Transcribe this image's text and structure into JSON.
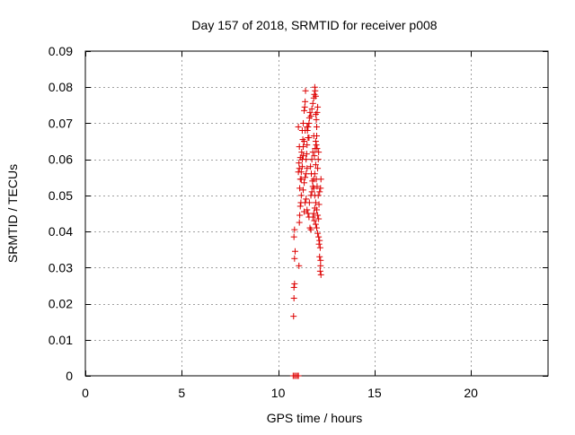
{
  "chart_data": {
    "type": "scatter",
    "title": "Day 157 of 2018, SRMTID for receiver p008",
    "xlabel": "GPS time / hours",
    "ylabel": "SRMTID / TECUs",
    "xlim": [
      0,
      24
    ],
    "ylim": [
      0,
      0.09
    ],
    "grid": true,
    "x_ticks": [
      {
        "value": 0,
        "label": "0"
      },
      {
        "value": 5,
        "label": "5"
      },
      {
        "value": 10,
        "label": "10"
      },
      {
        "value": 15,
        "label": "15"
      },
      {
        "value": 20,
        "label": "20"
      }
    ],
    "y_ticks": [
      {
        "value": 0,
        "label": "0"
      },
      {
        "value": 0.01,
        "label": "0.01"
      },
      {
        "value": 0.02,
        "label": "0.02"
      },
      {
        "value": 0.03,
        "label": "0.03"
      },
      {
        "value": 0.04,
        "label": "0.04"
      },
      {
        "value": 0.05,
        "label": "0.05"
      },
      {
        "value": 0.06,
        "label": "0.06"
      },
      {
        "value": 0.07,
        "label": "0.07"
      },
      {
        "value": 0.08,
        "label": "0.08"
      },
      {
        "value": 0.09,
        "label": "0.09"
      }
    ],
    "colors": {
      "marker": "#dd0000",
      "grid": "#a0a0a0",
      "axis": "#000000"
    },
    "series": [
      {
        "name": "SRMTID",
        "points": [
          [
            10.8,
            0.0165
          ],
          [
            10.82,
            0.0215
          ],
          [
            10.85,
            0.0255
          ],
          [
            10.82,
            0.0245
          ],
          [
            10.85,
            0.0325
          ],
          [
            10.88,
            0.0345
          ],
          [
            10.82,
            0.0385
          ],
          [
            10.85,
            0.0405
          ],
          [
            11.08,
            0.0305
          ],
          [
            11.1,
            0.0425
          ],
          [
            11.12,
            0.0445
          ],
          [
            11.15,
            0.047
          ],
          [
            11.18,
            0.048
          ],
          [
            11.2,
            0.05
          ],
          [
            11.12,
            0.052
          ],
          [
            11.15,
            0.0545
          ],
          [
            11.05,
            0.0565
          ],
          [
            11.1,
            0.0575
          ],
          [
            11.08,
            0.059
          ],
          [
            11.15,
            0.0605
          ],
          [
            11.1,
            0.0635
          ],
          [
            11.05,
            0.069
          ],
          [
            11.2,
            0.0565
          ],
          [
            11.25,
            0.06
          ],
          [
            11.22,
            0.062
          ],
          [
            11.3,
            0.0635
          ],
          [
            11.28,
            0.0655
          ],
          [
            11.25,
            0.068
          ],
          [
            11.3,
            0.07
          ],
          [
            11.35,
            0.0735
          ],
          [
            11.38,
            0.0745
          ],
          [
            11.4,
            0.076
          ],
          [
            11.42,
            0.079
          ],
          [
            11.3,
            0.0515
          ],
          [
            11.35,
            0.0535
          ],
          [
            11.4,
            0.055
          ],
          [
            11.45,
            0.056
          ],
          [
            11.5,
            0.0575
          ],
          [
            11.45,
            0.06
          ],
          [
            11.48,
            0.0615
          ],
          [
            11.5,
            0.064
          ],
          [
            11.55,
            0.066
          ],
          [
            11.52,
            0.068
          ],
          [
            11.55,
            0.069
          ],
          [
            11.6,
            0.07
          ],
          [
            11.62,
            0.0715
          ],
          [
            11.65,
            0.073
          ],
          [
            11.7,
            0.072
          ],
          [
            11.75,
            0.074
          ],
          [
            11.8,
            0.0755
          ],
          [
            11.85,
            0.077
          ],
          [
            11.88,
            0.078
          ],
          [
            11.9,
            0.08
          ],
          [
            11.92,
            0.079
          ],
          [
            11.95,
            0.0775
          ],
          [
            11.35,
            0.0455
          ],
          [
            11.4,
            0.048
          ],
          [
            11.45,
            0.049
          ],
          [
            11.5,
            0.046
          ],
          [
            11.55,
            0.045
          ],
          [
            11.6,
            0.044
          ],
          [
            11.65,
            0.041
          ],
          [
            11.7,
            0.0405
          ],
          [
            11.62,
            0.048
          ],
          [
            11.7,
            0.05
          ],
          [
            11.75,
            0.051
          ],
          [
            11.8,
            0.0525
          ],
          [
            11.85,
            0.0545
          ],
          [
            11.9,
            0.056
          ],
          [
            11.95,
            0.0585
          ],
          [
            11.88,
            0.061
          ],
          [
            11.92,
            0.063
          ],
          [
            11.95,
            0.065
          ],
          [
            12.0,
            0.0665
          ],
          [
            11.98,
            0.064
          ],
          [
            11.85,
            0.0665
          ],
          [
            11.8,
            0.062
          ],
          [
            11.75,
            0.06
          ],
          [
            11.68,
            0.058
          ],
          [
            11.72,
            0.056
          ],
          [
            11.78,
            0.054
          ],
          [
            11.85,
            0.052
          ],
          [
            11.9,
            0.05
          ],
          [
            11.95,
            0.048
          ],
          [
            11.9,
            0.0465
          ],
          [
            11.85,
            0.045
          ],
          [
            11.8,
            0.044
          ],
          [
            11.88,
            0.043
          ],
          [
            11.95,
            0.042
          ],
          [
            12.0,
            0.041
          ],
          [
            12.05,
            0.0395
          ],
          [
            12.1,
            0.0385
          ],
          [
            12.15,
            0.0375
          ],
          [
            12.12,
            0.0365
          ],
          [
            12.18,
            0.0355
          ],
          [
            12.15,
            0.033
          ],
          [
            12.2,
            0.0305
          ],
          [
            12.18,
            0.029
          ],
          [
            12.22,
            0.028
          ],
          [
            12.2,
            0.032
          ],
          [
            12.1,
            0.0435
          ],
          [
            12.05,
            0.0445
          ],
          [
            12.0,
            0.046
          ],
          [
            12.12,
            0.0475
          ],
          [
            12.08,
            0.05
          ],
          [
            12.15,
            0.051
          ],
          [
            12.2,
            0.052
          ],
          [
            12.22,
            0.0545
          ],
          [
            12.02,
            0.0525
          ],
          [
            11.98,
            0.0545
          ],
          [
            12.05,
            0.0575
          ],
          [
            12.08,
            0.06
          ],
          [
            12.1,
            0.062
          ],
          [
            12.02,
            0.063
          ],
          [
            12.0,
            0.069
          ],
          [
            11.98,
            0.071
          ],
          [
            12.02,
            0.073
          ],
          [
            12.05,
            0.0745
          ],
          [
            11.95,
            0.0725
          ],
          [
            11.6,
            0.066
          ],
          [
            11.5,
            0.069
          ],
          [
            11.4,
            0.068
          ],
          [
            11.35,
            0.065
          ],
          [
            11.3,
            0.061
          ],
          [
            11.25,
            0.058
          ],
          [
            11.2,
            0.0545
          ],
          [
            10.78,
            0.0
          ],
          [
            10.85,
            0.0
          ],
          [
            10.92,
            0.0
          ],
          [
            11.0,
            0.0
          ],
          [
            11.05,
            0.0
          ]
        ]
      }
    ]
  }
}
